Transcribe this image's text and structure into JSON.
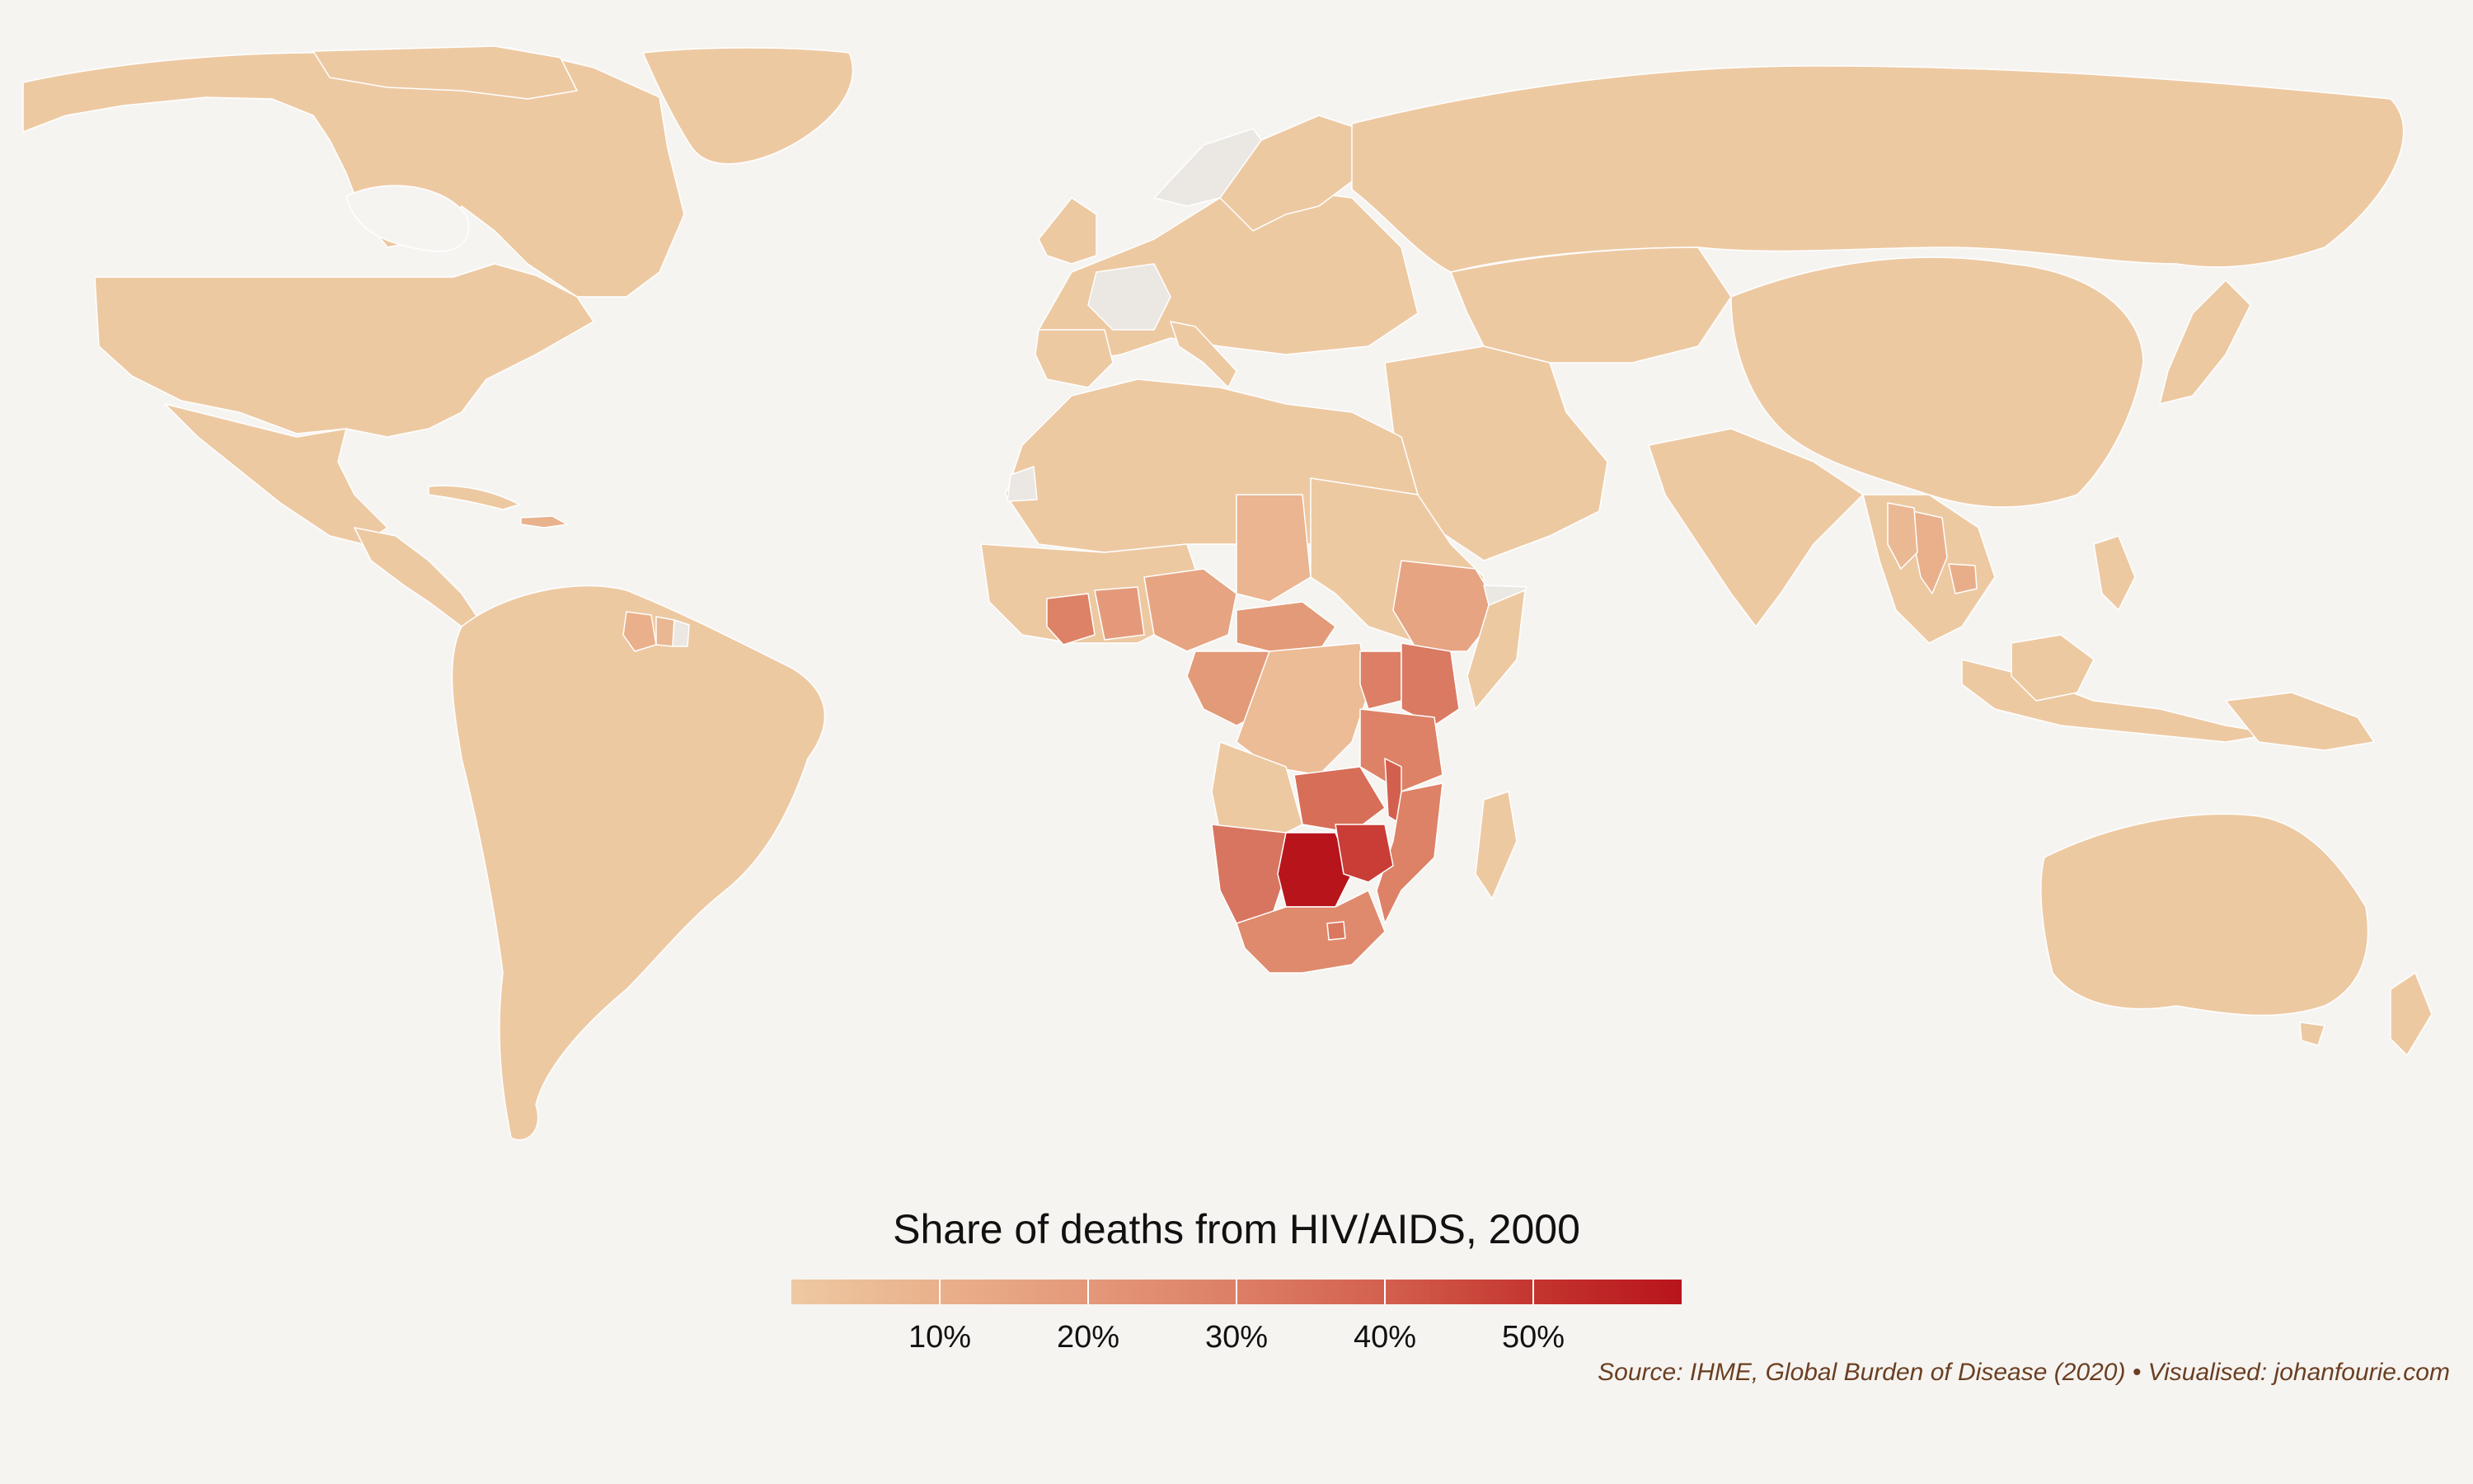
{
  "legend": {
    "title": "Share of deaths from HIV/AIDS, 2000",
    "ticks": [
      "10%",
      "20%",
      "30%",
      "40%",
      "50%"
    ],
    "tick_values": [
      10,
      20,
      30,
      40,
      50
    ],
    "min": 0,
    "max": 60,
    "colors": [
      "#edc9a2",
      "#e9b08b",
      "#e4987a",
      "#dc7f66",
      "#d3604e",
      "#c4352f",
      "#b8141c"
    ]
  },
  "source": "Source: IHME, Global Burden of Disease (2020) • Visualised: johanfourie.com",
  "colors": {
    "background": "#f6f4f1",
    "land_default": "#edc9a2",
    "no_data": "#ebe7e3"
  },
  "chart_data": {
    "type": "choropleth",
    "title": "Share of deaths from HIV/AIDS, 2000",
    "unit": "%",
    "scale_range": [
      0,
      60
    ],
    "no_data_regions": [
      "France",
      "Norway",
      "Western Sahara",
      "French Guiana",
      "Somaliland"
    ],
    "regions": [
      {
        "name": "Botswana",
        "value": 58
      },
      {
        "name": "Zimbabwe",
        "value": 52
      },
      {
        "name": "Zambia",
        "value": 40
      },
      {
        "name": "Malawi",
        "value": 42
      },
      {
        "name": "Namibia",
        "value": 36
      },
      {
        "name": "Kenya",
        "value": 35
      },
      {
        "name": "South Africa",
        "value": 30
      },
      {
        "name": "Lesotho",
        "value": 33
      },
      {
        "name": "Eswatini",
        "value": 48
      },
      {
        "name": "Tanzania",
        "value": 30
      },
      {
        "name": "Mozambique",
        "value": 30
      },
      {
        "name": "Uganda",
        "value": 30
      },
      {
        "name": "Rwanda",
        "value": 28
      },
      {
        "name": "Burundi",
        "value": 30
      },
      {
        "name": "Cote d'Ivoire",
        "value": 25
      },
      {
        "name": "Central African Republic",
        "value": 22
      },
      {
        "name": "Cameroon",
        "value": 22
      },
      {
        "name": "Nigeria",
        "value": 18
      },
      {
        "name": "Ethiopia",
        "value": 18
      },
      {
        "name": "Congo",
        "value": 20
      },
      {
        "name": "Gabon",
        "value": 18
      },
      {
        "name": "Chad",
        "value": 14
      },
      {
        "name": "Burkina Faso",
        "value": 15
      },
      {
        "name": "Ghana",
        "value": 14
      },
      {
        "name": "Togo",
        "value": 16
      },
      {
        "name": "Thailand",
        "value": 12
      },
      {
        "name": "Cambodia",
        "value": 13
      },
      {
        "name": "Myanmar",
        "value": 10
      },
      {
        "name": "Guyana",
        "value": 12
      },
      {
        "name": "Suriname",
        "value": 9
      },
      {
        "name": "Haiti",
        "value": 12
      },
      {
        "name": "DR Congo",
        "value": 9
      },
      {
        "name": "Angola",
        "value": 5
      }
    ]
  }
}
